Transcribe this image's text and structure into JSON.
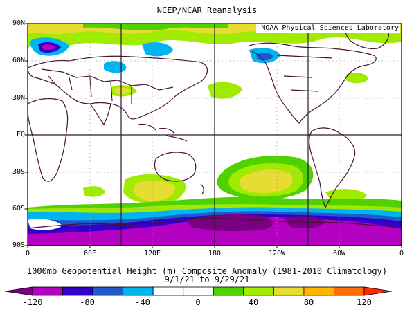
{
  "title": "NCEP/NCAR Reanalysis",
  "credit": "NOAA Physical Sciences Laboratory",
  "caption_line1": "1000mb Geopotential Height (m) Composite Anomaly (1981-2010 Climatology)",
  "caption_line2": "9/1/21 to 9/29/21",
  "lat_labels": [
    "90N",
    "60N",
    "30N",
    "EQ",
    "30S",
    "60S",
    "90S"
  ],
  "lon_labels": [
    "0",
    "60E",
    "120E",
    "180",
    "120W",
    "60W",
    "0"
  ],
  "colorbar": {
    "labels": [
      "-120",
      "-80",
      "-40",
      "0",
      "40",
      "80",
      "120"
    ],
    "colors": [
      "#7a0082",
      "#b400c0",
      "#3200c8",
      "#1e5acc",
      "#00b4f0",
      "#ffffff",
      "#ffffff",
      "#50d200",
      "#a0eb00",
      "#e6dc32",
      "#ffb400",
      "#ff6e00",
      "#ff2800"
    ]
  }
}
